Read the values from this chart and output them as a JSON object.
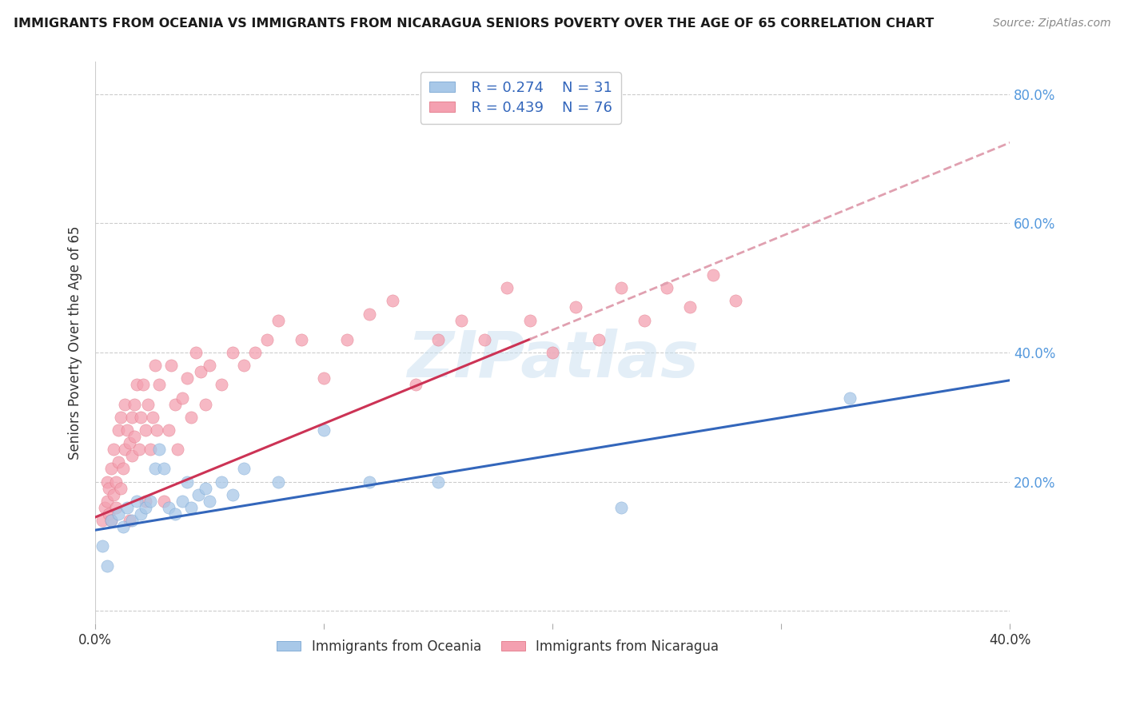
{
  "title": "IMMIGRANTS FROM OCEANIA VS IMMIGRANTS FROM NICARAGUA SENIORS POVERTY OVER THE AGE OF 65 CORRELATION CHART",
  "source": "Source: ZipAtlas.com",
  "ylabel": "Seniors Poverty Over the Age of 65",
  "xlim": [
    0.0,
    0.4
  ],
  "ylim": [
    -0.02,
    0.85
  ],
  "xticks": [
    0.0,
    0.1,
    0.2,
    0.3,
    0.4
  ],
  "xtick_labels": [
    "0.0%",
    "",
    "",
    "",
    "40.0%"
  ],
  "ytick_positions": [
    0.0,
    0.2,
    0.4,
    0.6,
    0.8
  ],
  "ytick_labels": [
    "",
    "20.0%",
    "40.0%",
    "60.0%",
    "80.0%"
  ],
  "watermark": "ZIPatlas",
  "legend_R_blue": "R = 0.274",
  "legend_N_blue": "N = 31",
  "legend_R_pink": "R = 0.439",
  "legend_N_pink": "N = 76",
  "label_blue": "Immigrants from Oceania",
  "label_pink": "Immigrants from Nicaragua",
  "blue_color": "#a8c8e8",
  "pink_color": "#f4a0b0",
  "line_blue": "#3366bb",
  "line_pink": "#cc3355",
  "line_dashed_color": "#e0a0b0",
  "blue_edge": "#6699cc",
  "pink_edge": "#dd6677",
  "oceania_x": [
    0.003,
    0.005,
    0.007,
    0.01,
    0.012,
    0.014,
    0.016,
    0.018,
    0.02,
    0.022,
    0.024,
    0.026,
    0.028,
    0.03,
    0.032,
    0.035,
    0.038,
    0.04,
    0.042,
    0.045,
    0.048,
    0.05,
    0.055,
    0.06,
    0.065,
    0.08,
    0.1,
    0.12,
    0.15,
    0.23,
    0.33
  ],
  "oceania_y": [
    0.1,
    0.07,
    0.14,
    0.15,
    0.13,
    0.16,
    0.14,
    0.17,
    0.15,
    0.16,
    0.17,
    0.22,
    0.25,
    0.22,
    0.16,
    0.15,
    0.17,
    0.2,
    0.16,
    0.18,
    0.19,
    0.17,
    0.2,
    0.18,
    0.22,
    0.2,
    0.28,
    0.2,
    0.2,
    0.16,
    0.33
  ],
  "nicaragua_x": [
    0.003,
    0.004,
    0.005,
    0.005,
    0.006,
    0.006,
    0.007,
    0.007,
    0.008,
    0.008,
    0.009,
    0.009,
    0.01,
    0.01,
    0.011,
    0.011,
    0.012,
    0.013,
    0.013,
    0.014,
    0.015,
    0.015,
    0.016,
    0.016,
    0.017,
    0.017,
    0.018,
    0.019,
    0.02,
    0.021,
    0.022,
    0.022,
    0.023,
    0.024,
    0.025,
    0.026,
    0.027,
    0.028,
    0.03,
    0.032,
    0.033,
    0.035,
    0.036,
    0.038,
    0.04,
    0.042,
    0.044,
    0.046,
    0.048,
    0.05,
    0.055,
    0.06,
    0.065,
    0.07,
    0.075,
    0.08,
    0.09,
    0.1,
    0.11,
    0.12,
    0.13,
    0.14,
    0.15,
    0.16,
    0.17,
    0.18,
    0.19,
    0.2,
    0.21,
    0.22,
    0.23,
    0.24,
    0.25,
    0.26,
    0.27,
    0.28
  ],
  "nicaragua_y": [
    0.14,
    0.16,
    0.17,
    0.2,
    0.15,
    0.19,
    0.14,
    0.22,
    0.18,
    0.25,
    0.16,
    0.2,
    0.23,
    0.28,
    0.19,
    0.3,
    0.22,
    0.32,
    0.25,
    0.28,
    0.14,
    0.26,
    0.3,
    0.24,
    0.32,
    0.27,
    0.35,
    0.25,
    0.3,
    0.35,
    0.17,
    0.28,
    0.32,
    0.25,
    0.3,
    0.38,
    0.28,
    0.35,
    0.17,
    0.28,
    0.38,
    0.32,
    0.25,
    0.33,
    0.36,
    0.3,
    0.4,
    0.37,
    0.32,
    0.38,
    0.35,
    0.4,
    0.38,
    0.4,
    0.42,
    0.45,
    0.42,
    0.36,
    0.42,
    0.46,
    0.48,
    0.35,
    0.42,
    0.45,
    0.42,
    0.5,
    0.45,
    0.4,
    0.47,
    0.42,
    0.5,
    0.45,
    0.5,
    0.47,
    0.52,
    0.48
  ],
  "pink_line_x_end": 0.19,
  "pink_line_x_start": 0.0,
  "blue_line_intercept": 0.125,
  "blue_line_slope": 0.58,
  "pink_line_intercept": 0.145,
  "pink_line_slope": 1.45
}
